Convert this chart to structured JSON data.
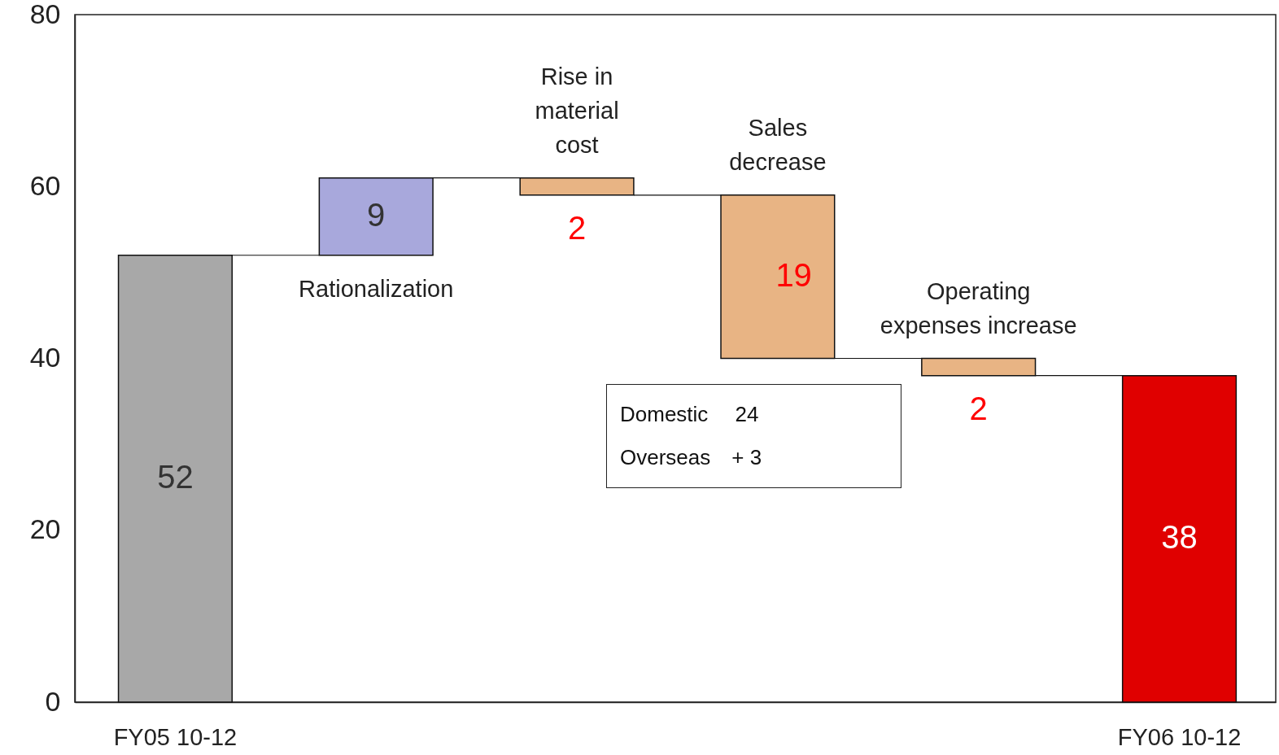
{
  "chart_data": {
    "type": "bar",
    "categories": [
      "FY05 10-12",
      "Rationalization",
      "Rise in\nmaterial\ncost",
      "Sales\ndecrease",
      "Operating\nexpenses increase",
      "FY06 10-12"
    ],
    "values": [
      52,
      9,
      -2,
      -19,
      -2,
      38
    ],
    "base": [
      0,
      52,
      61,
      59,
      40,
      0
    ],
    "colors": [
      "#a8a8a8",
      "#a8a8dc",
      "#e8b484",
      "#e8b484",
      "#e8b484",
      "#e00000"
    ],
    "value_labels": [
      "52",
      "9",
      "2",
      "19",
      "2",
      "38"
    ],
    "ylim": [
      0,
      80
    ],
    "yticks": [
      0,
      20,
      40,
      60,
      80
    ],
    "annotations": [
      "Domestic　 24",
      "Overseas　+ 3"
    ]
  }
}
